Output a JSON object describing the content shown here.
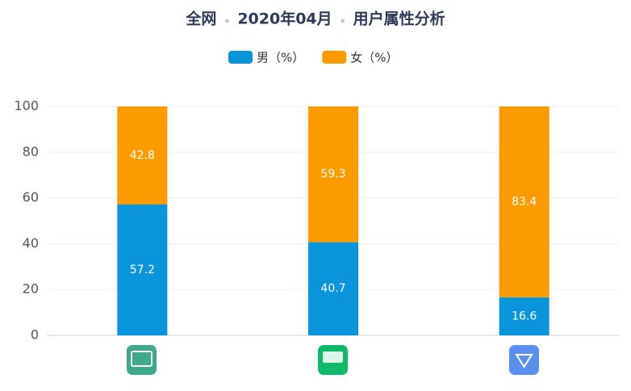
{
  "chart_data": {
    "type": "stacked-bar",
    "title_parts": [
      "全网",
      "2020年04月",
      "用户属性分析"
    ],
    "categories": [
      null,
      null,
      null
    ],
    "series": [
      {
        "name": "男（%）",
        "color": "#0a94dc",
        "values": [
          57.2,
          40.7,
          16.6
        ]
      },
      {
        "name": "女（%）",
        "color": "#fb9b00",
        "values": [
          42.8,
          59.3,
          83.4
        ]
      }
    ],
    "ylim": [
      0,
      100
    ],
    "yticks": [
      0,
      20,
      40,
      60,
      80,
      100
    ],
    "grid": true
  }
}
